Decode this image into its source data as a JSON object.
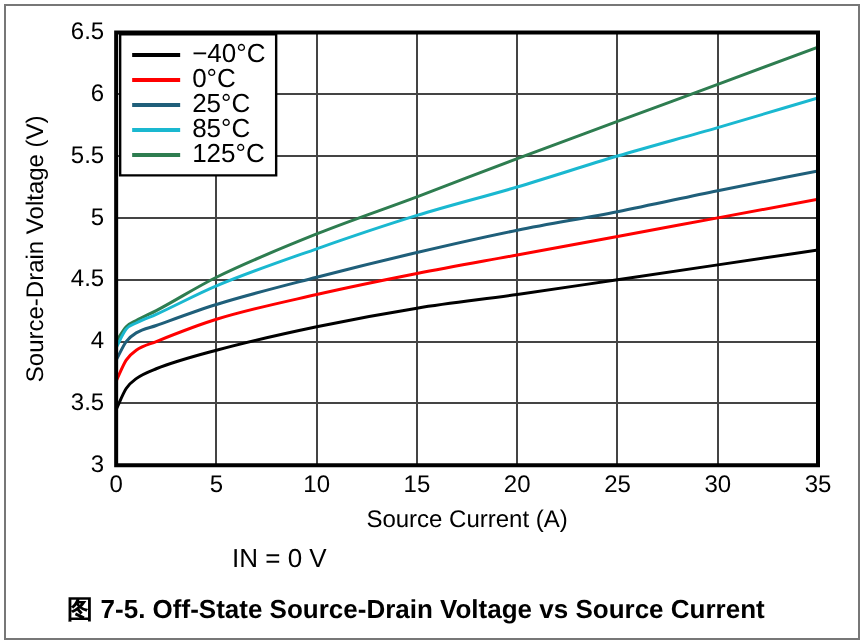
{
  "chart_data": {
    "type": "line",
    "title": "图 7-5. Off-State Source-Drain Voltage vs Source Current",
    "xlabel": "Source Current (A)",
    "ylabel": "Source-Drain Voltage (V)",
    "annotations": [
      "IN = 0 V"
    ],
    "x": [
      0,
      0.5,
      1,
      2,
      5,
      10,
      15,
      20,
      25,
      30,
      35
    ],
    "series": [
      {
        "name": "−40°C",
        "color": "#000000",
        "values": [
          3.45,
          3.62,
          3.7,
          3.78,
          3.93,
          4.12,
          4.27,
          4.38,
          4.5,
          4.62,
          4.74
        ]
      },
      {
        "name": "0°C",
        "color": "#ff0000",
        "values": [
          3.68,
          3.85,
          3.93,
          4.0,
          4.18,
          4.38,
          4.55,
          4.7,
          4.85,
          5.0,
          5.15
        ]
      },
      {
        "name": "25°C",
        "color": "#1f5f7a",
        "values": [
          3.85,
          4.0,
          4.07,
          4.13,
          4.3,
          4.52,
          4.72,
          4.9,
          5.05,
          5.22,
          5.38
        ]
      },
      {
        "name": "85°C",
        "color": "#1ab8d0",
        "values": [
          3.95,
          4.1,
          4.15,
          4.22,
          4.45,
          4.75,
          5.02,
          5.25,
          5.5,
          5.73,
          5.97
        ]
      },
      {
        "name": "125°C",
        "color": "#2e7d50",
        "values": [
          4.0,
          4.12,
          4.17,
          4.25,
          4.52,
          4.87,
          5.17,
          5.48,
          5.78,
          6.08,
          6.38
        ]
      }
    ],
    "xlim": [
      0,
      35
    ],
    "xticks": [
      0,
      5,
      10,
      15,
      20,
      25,
      30,
      35
    ],
    "ylim": [
      3,
      6.5
    ],
    "yticks": [
      3,
      3.5,
      4,
      4.5,
      5,
      5.5,
      6,
      6.5
    ],
    "grid": true,
    "legend": "top left",
    "marker": "none",
    "line_style": "solid"
  }
}
